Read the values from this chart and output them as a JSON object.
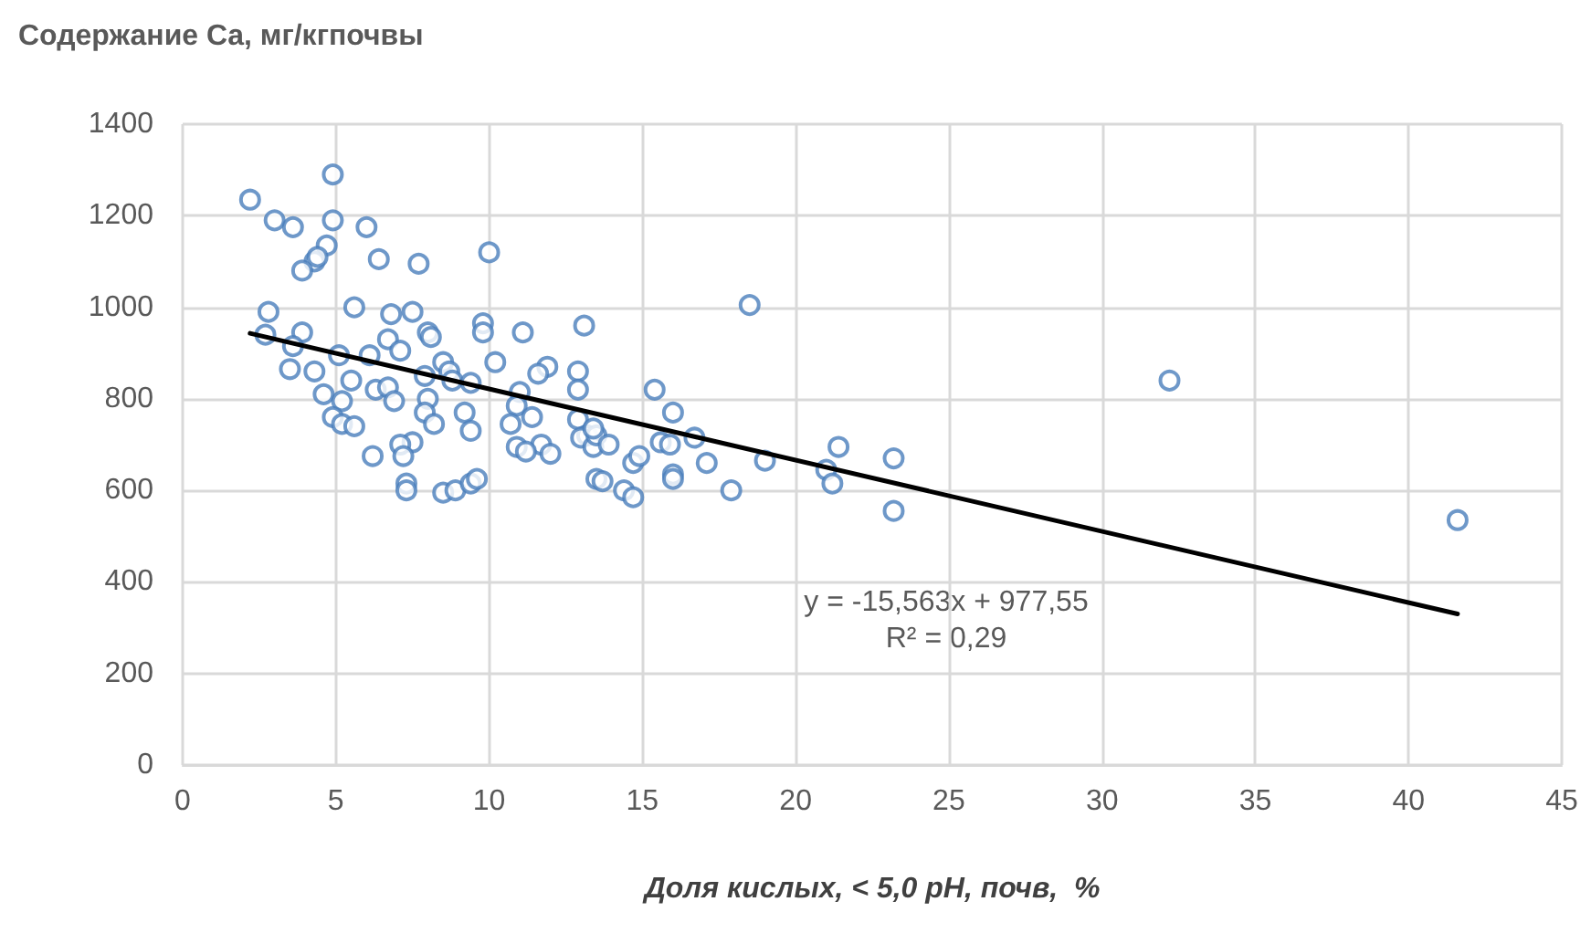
{
  "chart_data": {
    "type": "scatter",
    "ylabel": "Содержание Ca, мг/кгпочвы",
    "xlabel": "Доля кислых, < 5,0 pH, почв,  %",
    "annotations": [
      "y = -15,563x + 977,55",
      "R² = 0,29"
    ],
    "xlim": [
      0,
      45
    ],
    "xticks": [
      0,
      5,
      10,
      15,
      20,
      25,
      30,
      35,
      40,
      45
    ],
    "ylim": [
      0,
      1400
    ],
    "yticks": [
      0,
      200,
      400,
      600,
      800,
      1000,
      1200,
      1400
    ],
    "grid": true,
    "marker": "circle",
    "series": [
      {
        "color": "#4a7ebb",
        "x": [
          2.2,
          3.0,
          3.6,
          4.9,
          4.9,
          6.0,
          4.7,
          4.3,
          4.4,
          3.9,
          6.4,
          7.7,
          10.0,
          18.5,
          2.8,
          5.6,
          7.5,
          6.8,
          9.8,
          9.8,
          11.1,
          13.1,
          3.9,
          2.7,
          8.0,
          8.1,
          3.6,
          4.3,
          3.5,
          5.1,
          6.1,
          6.7,
          7.1,
          8.5,
          8.7,
          8.8,
          7.9,
          6.3,
          6.7,
          5.5,
          4.6,
          5.2,
          4.9,
          5.2,
          5.6,
          6.9,
          8.0,
          7.9,
          8.2,
          9.4,
          10.2,
          11.9,
          11.6,
          12.9,
          12.9,
          11.0,
          10.9,
          10.7,
          9.2,
          9.4,
          7.5,
          7.1,
          7.2,
          7.3,
          7.3,
          6.2,
          10.9,
          11.7,
          12.0,
          11.2,
          8.5,
          8.9,
          9.4,
          9.6,
          11.4,
          12.9,
          13.2,
          13.0,
          13.4,
          13.5,
          13.4,
          13.9,
          13.5,
          13.7,
          14.4,
          14.7,
          14.7,
          14.9,
          15.4,
          15.6,
          15.9,
          16.0,
          16.0,
          16.0,
          16.7,
          17.1,
          17.9,
          19.0,
          21.0,
          21.2,
          21.4,
          23.2,
          23.2,
          32.2,
          41.6
        ],
        "values": [
          1235,
          1190,
          1175,
          1290,
          1190,
          1175,
          1135,
          1100,
          1110,
          1080,
          1105,
          1095,
          1120,
          1005,
          990,
          1000,
          990,
          985,
          965,
          945,
          945,
          960,
          945,
          940,
          945,
          935,
          915,
          860,
          865,
          895,
          895,
          930,
          905,
          880,
          860,
          840,
          850,
          820,
          825,
          840,
          810,
          795,
          760,
          745,
          740,
          795,
          800,
          770,
          745,
          835,
          880,
          870,
          855,
          860,
          820,
          815,
          785,
          745,
          770,
          730,
          705,
          700,
          675,
          615,
          600,
          675,
          695,
          700,
          680,
          685,
          595,
          600,
          615,
          625,
          760,
          755,
          720,
          715,
          695,
          720,
          735,
          700,
          625,
          620,
          600,
          585,
          660,
          675,
          820,
          705,
          700,
          770,
          635,
          625,
          715,
          660,
          600,
          665,
          645,
          615,
          695,
          670,
          555,
          840,
          535
        ]
      },
      {
        "type": "line",
        "marker": "none",
        "color": "#000000",
        "x": [
          2.2,
          41.6
        ],
        "values": [
          943,
          330
        ]
      }
    ]
  }
}
